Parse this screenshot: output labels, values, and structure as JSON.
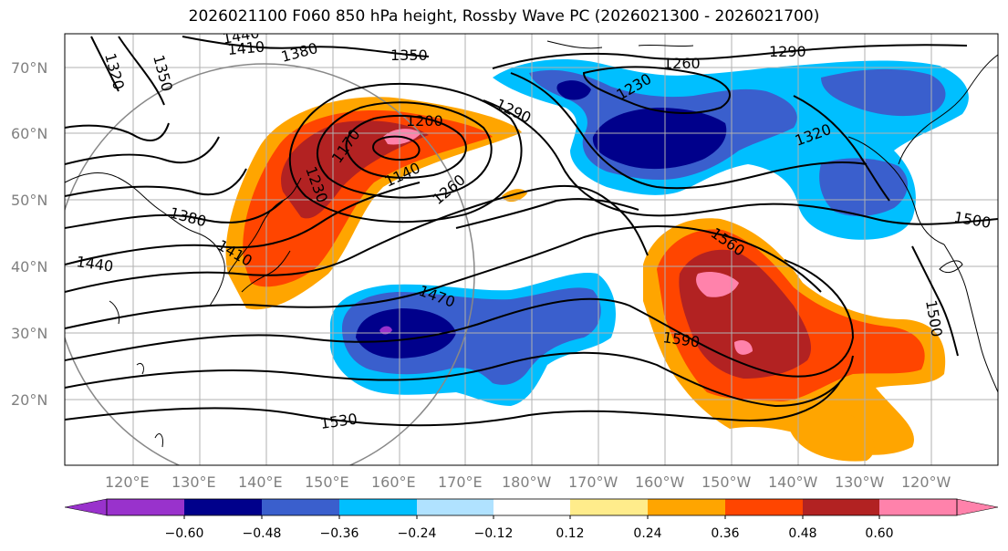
{
  "title": "2026021100 F060 850 hPa height, Rossby Wave PC (2026021300 - 2026021700)",
  "lat_labels": [
    "70°N",
    "60°N",
    "50°N",
    "40°N",
    "30°N",
    "20°N"
  ],
  "lon_labels": [
    "120°E",
    "130°E",
    "140°E",
    "150°E",
    "160°E",
    "170°E",
    "180°W",
    "170°W",
    "160°W",
    "150°W",
    "140°W",
    "130°W",
    "120°W"
  ],
  "contour_labels": [
    "1440",
    "1410",
    "1380",
    "1350",
    "1320",
    "1350",
    "1260",
    "1290",
    "1290",
    "1230",
    "1200",
    "1170",
    "1230",
    "1140",
    "1260",
    "1380",
    "1410",
    "1440",
    "1470",
    "1560",
    "1590",
    "1530",
    "1500",
    "1500",
    "1320"
  ],
  "colorbar": {
    "ticks": [
      "−0.60",
      "−0.48",
      "−0.36",
      "−0.24",
      "−0.12",
      "0.12",
      "0.24",
      "0.36",
      "0.48",
      "0.60"
    ],
    "colors": [
      "#9932cc",
      "#00008b",
      "#3a5fcd",
      "#00bfff",
      "#b0e2ff",
      "#ffffff",
      "#ffec8b",
      "#ffa500",
      "#ff4500",
      "#b22222",
      "#ff82ab"
    ]
  },
  "colors": {
    "neg_strong": "#00008b",
    "neg_mid": "#3a5fcd",
    "neg_light": "#00bfff",
    "neg_faint": "#b0e2ff",
    "pos_faint": "#ffec8b",
    "pos_light": "#ffa500",
    "pos_mid": "#ff4500",
    "pos_strong": "#b22222",
    "pos_max": "#ff82ab",
    "purple": "#9932cc"
  }
}
